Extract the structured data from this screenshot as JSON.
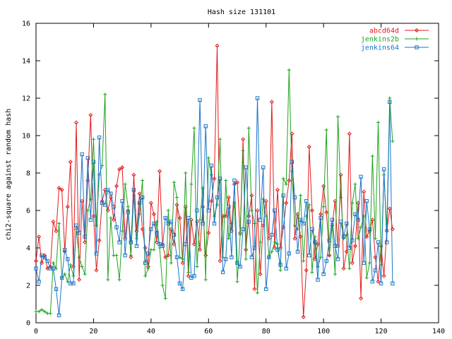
{
  "chart_data": {
    "type": "line",
    "title": "Hash size 131101",
    "xlabel": "",
    "ylabel": "chi2-square against random hash",
    "xlim": [
      0,
      140
    ],
    "ylim": [
      0,
      16
    ],
    "xticks": [
      0,
      20,
      40,
      60,
      80,
      100,
      120,
      140
    ],
    "yticks": [
      0,
      2,
      4,
      6,
      8,
      10,
      12,
      14,
      16
    ],
    "grid": false,
    "legend_position": "top-right",
    "series": [
      {
        "name": "abcd64d",
        "color": "#e41a1c",
        "marker": "diamond",
        "y": [
          3.3,
          4.6,
          3.2,
          3.6,
          2.9,
          3.0,
          5.4,
          4.9,
          7.2,
          7.1,
          3.8,
          6.2,
          8.6,
          3.0,
          10.7,
          2.3,
          6.5,
          4.3,
          7.6,
          11.1,
          5.7,
          2.8,
          4.4,
          6.5,
          7.1,
          6.0,
          6.7,
          5.5,
          7.3,
          8.2,
          8.3,
          4.5,
          6.0,
          3.5,
          7.9,
          4.9,
          6.9,
          5.0,
          4.0,
          3.0,
          6.4,
          5.8,
          4.3,
          8.1,
          4.2,
          3.5,
          3.6,
          5.0,
          4.2,
          6.3,
          5.6,
          3.2,
          6.2,
          2.5,
          5.5,
          4.2,
          5.4,
          3.9,
          6.2,
          3.6,
          4.8,
          6.5,
          7.7,
          14.8,
          3.3,
          5.7,
          5.7,
          6.7,
          4.9,
          7.4,
          7.5,
          4.8,
          9.8,
          3.9,
          5.7,
          6.8,
          1.8,
          6.0,
          2.6,
          5.2,
          6.5,
          4.5,
          11.8,
          4.0,
          7.1,
          4.0,
          5.1,
          6.4,
          7.6,
          10.1,
          4.5,
          5.8,
          4.6,
          0.3,
          2.8,
          9.4,
          6.0,
          3.4,
          4.2,
          5.8,
          7.3,
          5.9,
          3.6,
          5.2,
          6.5,
          4.1,
          7.9,
          2.9,
          3.8,
          10.1,
          3.2,
          4.1,
          6.4,
          1.3,
          7.0,
          4.6,
          4.9,
          5.5,
          3.5,
          2.2,
          4.1,
          2.5,
          4.9,
          6.1,
          5.0
        ]
      },
      {
        "name": "jenkins2b",
        "color": "#1fa31f",
        "marker": "plus",
        "y": [
          0.6,
          0.6,
          0.7,
          0.6,
          0.5,
          0.5,
          3.2,
          2.9,
          5.3,
          2.4,
          2.6,
          2.2,
          3.1,
          2.5,
          5.0,
          3.5,
          3.0,
          2.6,
          6.0,
          6.6,
          9.8,
          5.2,
          7.9,
          8.4,
          12.2,
          2.3,
          5.6,
          3.6,
          3.6,
          2.3,
          4.9,
          7.4,
          6.2,
          3.6,
          6.8,
          4.5,
          5.8,
          7.6,
          2.5,
          2.9,
          3.9,
          3.9,
          5.4,
          4.0,
          2.0,
          1.3,
          6.0,
          3.2,
          7.5,
          6.7,
          3.5,
          3.4,
          8.0,
          2.7,
          7.4,
          10.4,
          3.0,
          5.5,
          7.2,
          2.3,
          8.8,
          7.9,
          5.7,
          6.3,
          9.8,
          3.5,
          7.6,
          4.5,
          5.3,
          6.4,
          2.2,
          4.7,
          9.2,
          3.4,
          10.4,
          6.0,
          5.3,
          1.6,
          4.3,
          6.6,
          5.7,
          3.5,
          3.8,
          4.3,
          4.2,
          2.8,
          7.7,
          7.4,
          13.5,
          8.1,
          5.2,
          5.0,
          6.8,
          3.3,
          5.7,
          6.3,
          2.7,
          4.6,
          3.0,
          3.5,
          6.2,
          10.3,
          3.6,
          5.3,
          2.6,
          11.0,
          6.7,
          4.5,
          4.7,
          2.9,
          6.4,
          7.4,
          4.5,
          5.1,
          5.7,
          2.4,
          3.2,
          8.9,
          4.5,
          10.7,
          3.1,
          7.9,
          5.0,
          12.0,
          9.7
        ]
      },
      {
        "name": "jenkins64",
        "color": "#1a75c9",
        "marker": "square",
        "y": [
          2.9,
          2.2,
          3.6,
          3.5,
          3.3,
          2.9,
          2.9,
          1.8,
          0.4,
          2.4,
          3.9,
          3.4,
          2.1,
          2.1,
          5.2,
          4.8,
          9.0,
          4.6,
          8.8,
          5.5,
          8.6,
          3.7,
          9.9,
          6.4,
          6.3,
          7.1,
          6.9,
          6.2,
          5.1,
          4.3,
          6.5,
          3.6,
          5.9,
          4.3,
          7.1,
          4.1,
          6.4,
          6.7,
          3.2,
          3.7,
          5.0,
          5.3,
          4.8,
          4.2,
          4.1,
          5.6,
          5.3,
          5.4,
          4.7,
          3.5,
          2.1,
          1.8,
          4.2,
          5.6,
          2.4,
          2.5,
          6.0,
          11.9,
          5.3,
          10.5,
          6.0,
          8.4,
          5.3,
          6.7,
          7.7,
          2.7,
          3.4,
          6.2,
          3.5,
          7.6,
          3.2,
          3.0,
          5.0,
          8.3,
          5.4,
          3.5,
          4.0,
          12.0,
          5.5,
          8.3,
          1.8,
          3.5,
          4.7,
          6.0,
          3.9,
          3.1,
          6.8,
          2.9,
          3.7,
          8.6,
          6.7,
          3.8,
          5.5,
          5.3,
          6.5,
          3.6,
          5.0,
          4.3,
          2.3,
          5.6,
          2.6,
          3.3,
          4.4,
          5.5,
          4.1,
          3.4,
          5.4,
          4.6,
          5.3,
          4.0,
          4.4,
          5.8,
          5.5,
          7.8,
          3.2,
          6.5,
          5.0,
          2.2,
          2.8,
          4.3,
          2.1,
          8.2,
          4.3,
          11.8,
          2.1
        ]
      }
    ]
  }
}
